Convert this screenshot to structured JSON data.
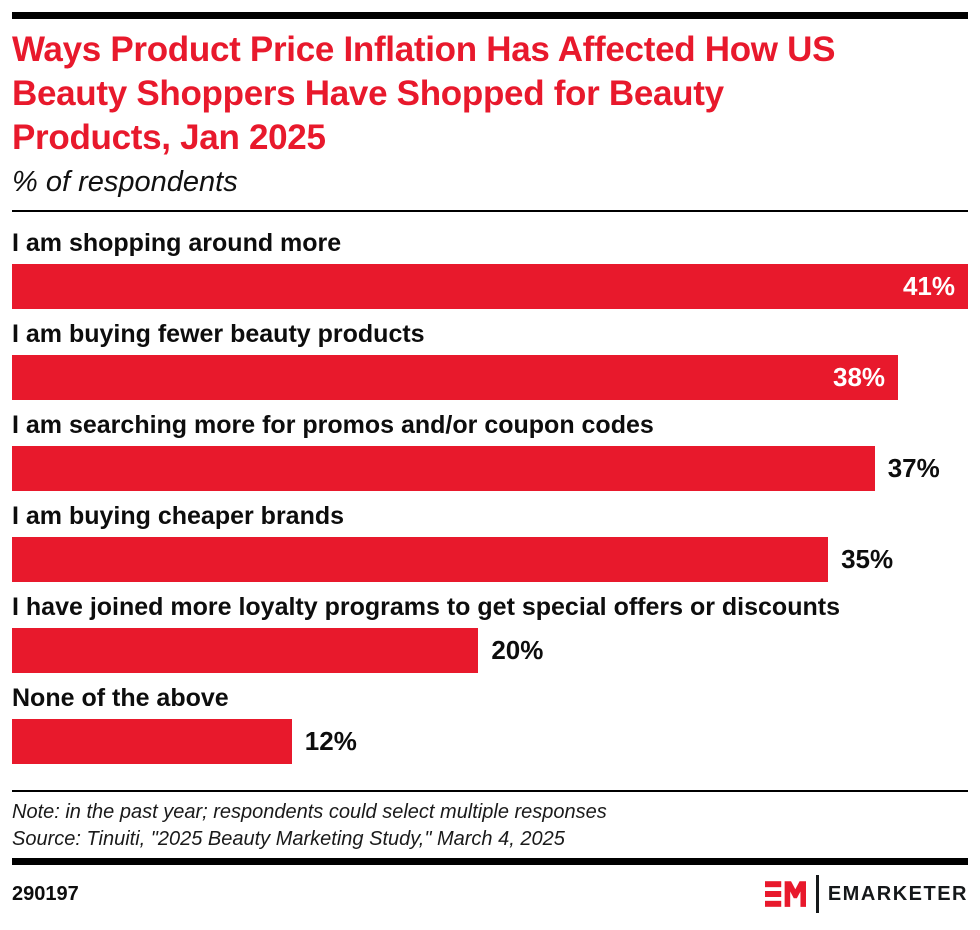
{
  "header": {
    "title_lines": [
      "Ways Product Price Inflation Has Affected How US",
      "Beauty Shoppers Have Shopped for Beauty",
      "Products, Jan 2025"
    ],
    "subtitle": "% of respondents"
  },
  "chart_data": {
    "type": "bar",
    "orientation": "horizontal",
    "title": "Ways Product Price Inflation Has Affected How US Beauty Shoppers Have Shopped for Beauty Products, Jan 2025",
    "subtitle": "% of respondents",
    "unit": "%",
    "xlim": [
      0,
      41
    ],
    "grid": false,
    "legend": false,
    "categories": [
      "I am shopping around more",
      "I am buying fewer beauty products",
      "I am searching more for promos and/or coupon codes",
      "I am buying cheaper brands",
      "I have joined more loyalty programs to get special offers or discounts",
      "None of the above"
    ],
    "values": [
      41,
      38,
      37,
      35,
      20,
      12
    ],
    "value_labels": [
      "41%",
      "38%",
      "37%",
      "35%",
      "20%",
      "12%"
    ],
    "value_label_position": [
      "inside",
      "inside",
      "outside",
      "outside",
      "outside",
      "outside"
    ],
    "bar_color": "#E8192C"
  },
  "footer": {
    "note": "Note: in the past year; respondents could select multiple responses",
    "source": "Source: Tinuiti, \"2025 Beauty Marketing Study,\" March 4, 2025",
    "chart_id": "290197",
    "brand": "EMARKETER"
  },
  "colors": {
    "accent_red": "#E8192C",
    "ink": "#0D0D0D"
  }
}
